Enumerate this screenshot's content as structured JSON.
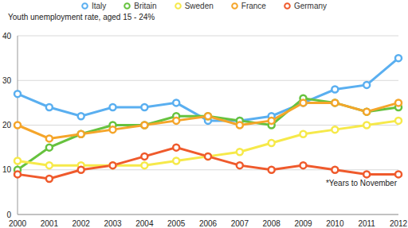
{
  "chart_data": {
    "type": "line",
    "title": "Youth unemployment rate, aged 15 - 24%",
    "annotation": "*Years to November",
    "categories": [
      "2000",
      "2001",
      "2002",
      "2003",
      "2004",
      "2005",
      "2006",
      "2007",
      "2008",
      "2009",
      "2010",
      "2011",
      "2012"
    ],
    "series": [
      {
        "name": "Italy",
        "color": "#5aaff0",
        "values": [
          27,
          24,
          22,
          24,
          24,
          25,
          21,
          21,
          22,
          25,
          28,
          29,
          35
        ]
      },
      {
        "name": "Britain",
        "color": "#66c23e",
        "values": [
          10,
          15,
          18,
          20,
          20,
          22,
          22,
          21,
          20,
          26,
          25,
          23,
          24
        ]
      },
      {
        "name": "Sweden",
        "color": "#f6e94a",
        "values": [
          12,
          11,
          11,
          11,
          11,
          12,
          13,
          14,
          16,
          18,
          19,
          20,
          21
        ]
      },
      {
        "name": "France",
        "color": "#f5a52a",
        "values": [
          20,
          17,
          18,
          19,
          20,
          21,
          22,
          20,
          21,
          25,
          25,
          23,
          25
        ]
      },
      {
        "name": "Germany",
        "color": "#ef5a2c",
        "values": [
          9,
          8,
          10,
          11,
          13,
          15,
          13,
          11,
          10,
          11,
          10,
          9,
          9
        ]
      }
    ],
    "ylim": [
      0,
      40
    ],
    "yticks": [
      0,
      10,
      20,
      30,
      40
    ],
    "grid": true,
    "legend": "top",
    "marker": "circle"
  }
}
